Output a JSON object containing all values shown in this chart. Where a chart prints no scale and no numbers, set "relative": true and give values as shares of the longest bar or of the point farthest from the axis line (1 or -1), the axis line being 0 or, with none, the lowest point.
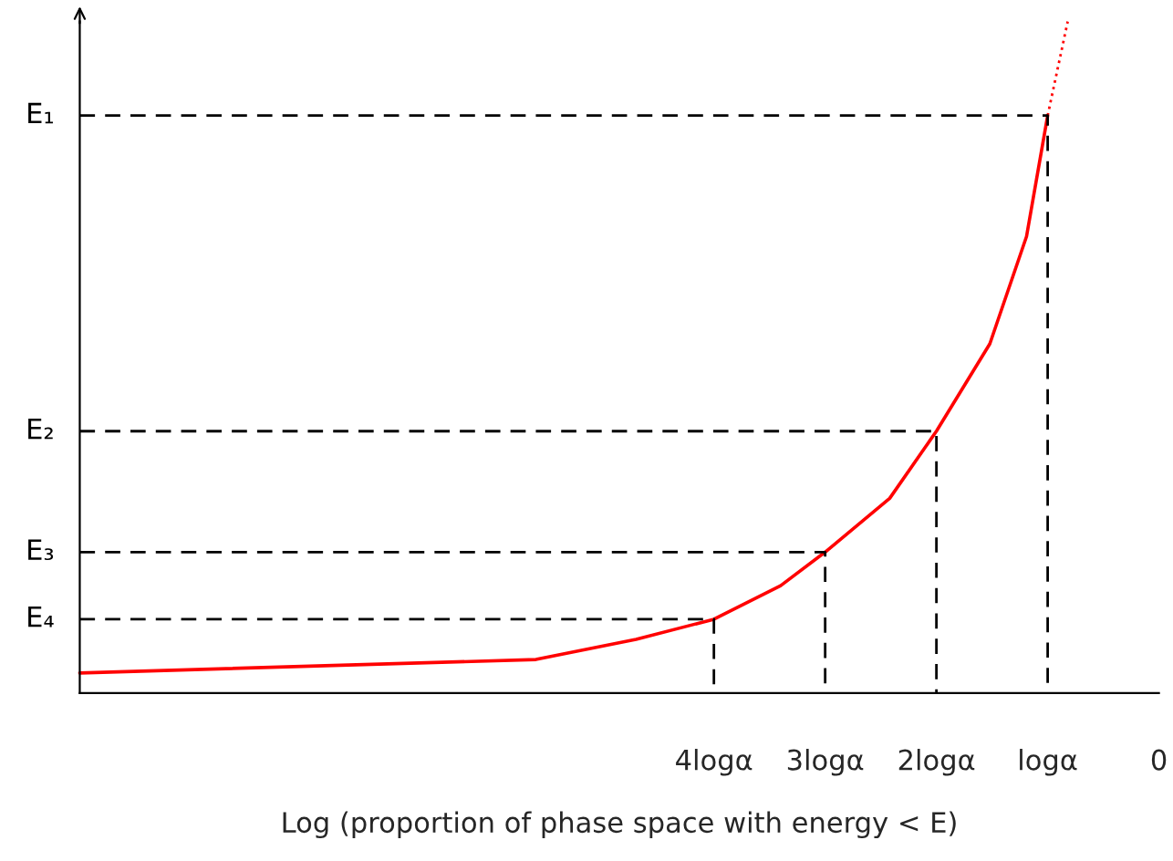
{
  "chart_data": {
    "type": "line",
    "xlabel": "Log (proportion of phase space with energy < E)",
    "relative": true,
    "xlim": [
      -9.7,
      0
    ],
    "xticks": [
      {
        "value": -4,
        "label": "4logα"
      },
      {
        "value": -3,
        "label": "3logα"
      },
      {
        "value": -2,
        "label": "2logα"
      },
      {
        "value": -1,
        "label": "logα"
      },
      0
    ],
    "grid": false,
    "legend": false,
    "marker": "none",
    "series": [
      {
        "color": "#ff0000",
        "line_style": "solid",
        "x": [
          -9.7,
          -5.6,
          -4.7,
          -4,
          -3.4,
          -3,
          -2.42,
          -2,
          -1.52,
          -1.19,
          -1
        ],
        "values": [
          0.03,
          0.05,
          0.08,
          0.11,
          0.16,
          0.21,
          0.29,
          0.39,
          0.52,
          0.68,
          0.86
        ]
      },
      {
        "color": "#ff0000",
        "line_style": "dotted",
        "x": [
          -1,
          -0.82
        ],
        "values": [
          0.86,
          1
        ]
      },
      {
        "name": "E₁",
        "color": "#000000",
        "line_style": "dashed",
        "x": [
          -9.7,
          -1,
          -1
        ],
        "values": [
          0.86,
          0.86,
          0
        ]
      },
      {
        "name": "E₂",
        "color": "#000000",
        "line_style": "dashed",
        "x": [
          -9.7,
          -2,
          -2
        ],
        "values": [
          0.39,
          0.39,
          0
        ]
      },
      {
        "name": "E₃",
        "color": "#000000",
        "line_style": "dashed",
        "x": [
          -9.7,
          -3,
          -3
        ],
        "values": [
          0.21,
          0.21,
          0
        ]
      },
      {
        "name": "E₄",
        "color": "#000000",
        "line_style": "dashed",
        "x": [
          -9.7,
          -4,
          -4
        ],
        "values": [
          0.11,
          0.11,
          0
        ]
      }
    ]
  }
}
